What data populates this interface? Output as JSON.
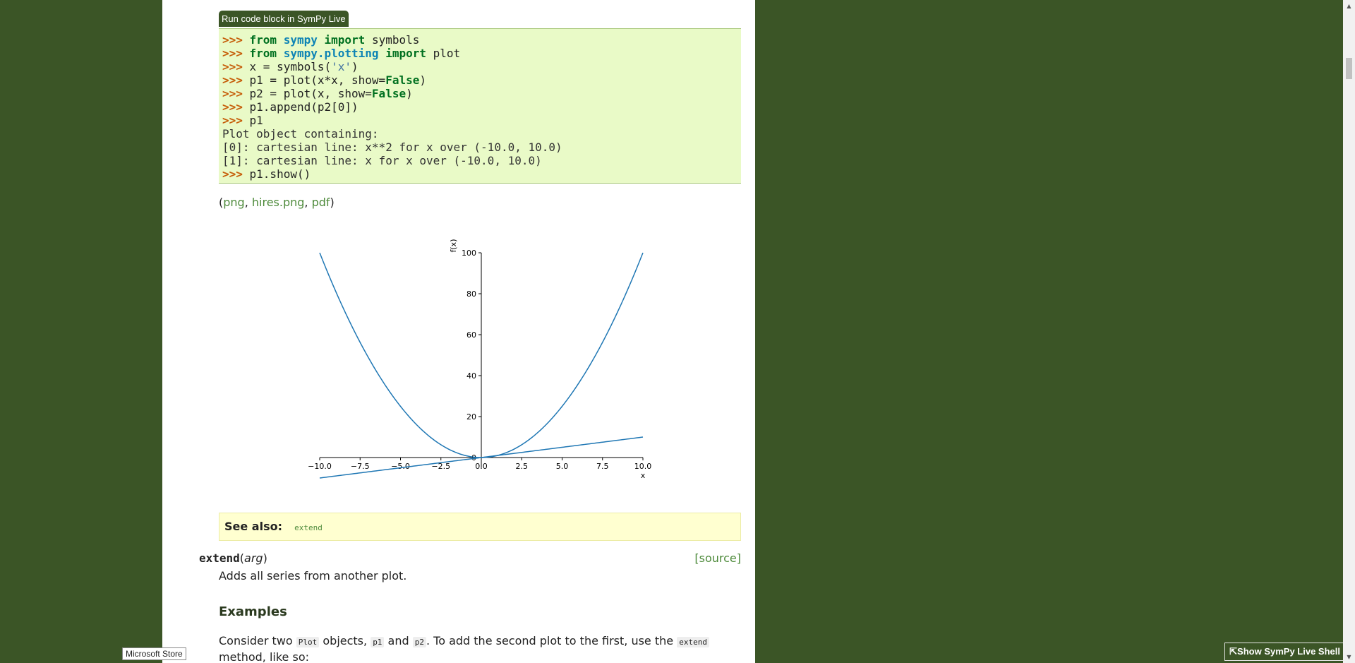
{
  "run_button_label": "Run code block in SymPy Live",
  "code_lines": [
    [
      {
        "t": "prompt",
        "v": ">>> "
      },
      {
        "t": "kw",
        "v": "from"
      },
      {
        "t": "txt",
        "v": " "
      },
      {
        "t": "mod",
        "v": "sympy"
      },
      {
        "t": "txt",
        "v": " "
      },
      {
        "t": "kw",
        "v": "import"
      },
      {
        "t": "txt",
        "v": " symbols"
      }
    ],
    [
      {
        "t": "prompt",
        "v": ">>> "
      },
      {
        "t": "kw",
        "v": "from"
      },
      {
        "t": "txt",
        "v": " "
      },
      {
        "t": "mod",
        "v": "sympy.plotting"
      },
      {
        "t": "txt",
        "v": " "
      },
      {
        "t": "kw",
        "v": "import"
      },
      {
        "t": "txt",
        "v": " plot"
      }
    ],
    [
      {
        "t": "prompt",
        "v": ">>> "
      },
      {
        "t": "txt",
        "v": "x = symbols("
      },
      {
        "t": "str",
        "v": "'x'"
      },
      {
        "t": "txt",
        "v": ")"
      }
    ],
    [
      {
        "t": "prompt",
        "v": ">>> "
      },
      {
        "t": "txt",
        "v": "p1 = plot(x*x, show="
      },
      {
        "t": "kw",
        "v": "False"
      },
      {
        "t": "txt",
        "v": ")"
      }
    ],
    [
      {
        "t": "prompt",
        "v": ">>> "
      },
      {
        "t": "txt",
        "v": "p2 = plot(x, show="
      },
      {
        "t": "kw",
        "v": "False"
      },
      {
        "t": "txt",
        "v": ")"
      }
    ],
    [
      {
        "t": "prompt",
        "v": ">>> "
      },
      {
        "t": "txt",
        "v": "p1.append(p2[0])"
      }
    ],
    [
      {
        "t": "prompt",
        "v": ">>> "
      },
      {
        "t": "txt",
        "v": "p1"
      }
    ],
    [
      {
        "t": "out",
        "v": "Plot object containing:"
      }
    ],
    [
      {
        "t": "out",
        "v": "[0]: cartesian line: x**2 for x over (-10.0, 10.0)"
      }
    ],
    [
      {
        "t": "out",
        "v": "[1]: cartesian line: x for x over (-10.0, 10.0)"
      }
    ],
    [
      {
        "t": "prompt",
        "v": ">>> "
      },
      {
        "t": "txt",
        "v": "p1.show()"
      }
    ]
  ],
  "image_links": {
    "open": "(",
    "png": "png",
    "sep1": ", ",
    "hires": "hires.png",
    "sep2": ", ",
    "pdf": "pdf",
    "close": ")"
  },
  "chart_data": {
    "type": "line",
    "xlabel": "x",
    "ylabel": "f(x)",
    "xlim": [
      -10,
      10
    ],
    "ylim": [
      -5,
      100
    ],
    "x_ticks": [
      "−10.0",
      "−7.5",
      "−5.0",
      "−2.5",
      "0.0",
      "2.5",
      "5.0",
      "7.5",
      "10.0"
    ],
    "x_tick_values": [
      -10,
      -7.5,
      -5,
      -2.5,
      0,
      2.5,
      5,
      7.5,
      10
    ],
    "y_ticks": [
      "0",
      "20",
      "40",
      "60",
      "80",
      "100"
    ],
    "y_tick_values": [
      0,
      20,
      40,
      60,
      80,
      100
    ],
    "series": [
      {
        "expr": "x**2",
        "color": "#1f77b4"
      },
      {
        "expr": "x",
        "color": "#1f77b4"
      }
    ]
  },
  "see_also": {
    "title": "See also:",
    "ref": "extend"
  },
  "method": {
    "name": "extend",
    "open": "(",
    "arg": "arg",
    "close": ")",
    "source": "[source]"
  },
  "description": "Adds all series from another plot.",
  "examples_heading": "Examples",
  "paragraph": [
    {
      "t": "txt",
      "v": "Consider two "
    },
    {
      "t": "code",
      "v": "Plot"
    },
    {
      "t": "txt",
      "v": " objects, "
    },
    {
      "t": "code",
      "v": "p1"
    },
    {
      "t": "txt",
      "v": " and "
    },
    {
      "t": "code",
      "v": "p2"
    },
    {
      "t": "txt",
      "v": ". To add the second plot to the first, use the "
    },
    {
      "t": "code",
      "v": "extend"
    },
    {
      "t": "txt",
      "v": " method, like so:"
    }
  ],
  "tooltip": "Microsoft Store",
  "live_shell_label": "⇱Show SymPy Live Shell",
  "colors": {
    "background": "#3b5526",
    "code_bg": "#e9fac7",
    "link": "#4d8a3a",
    "see_also_bg": "#ffffd0"
  }
}
